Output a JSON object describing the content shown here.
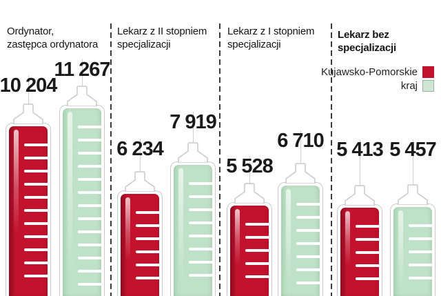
{
  "legend": {
    "items": [
      {
        "label": "Kujawsko-Pomorskie",
        "color": "#c3122d"
      },
      {
        "label": "kraj",
        "color": "#cfe6d4"
      }
    ]
  },
  "categories": [
    {
      "line1": "Ordynator,",
      "line2": "zastępca ordynatora",
      "bold": false
    },
    {
      "line1": "Lekarz z II stopniem",
      "line2": "specjalizacji",
      "bold": false
    },
    {
      "line1": "Lekarz z I stopniem",
      "line2": "specjalizacji",
      "bold": false
    },
    {
      "line1": "Lekarz bez specjalizacji",
      "line2": "",
      "bold": true
    }
  ],
  "chart_data": {
    "type": "bar",
    "categories": [
      "Ordynator, zastępca ordynatora",
      "Lekarz z II stopniem specjalizacji",
      "Lekarz z I stopniem specjalizacji",
      "Lekarz bez specjalizacji"
    ],
    "series": [
      {
        "name": "Kujawsko-Pomorskie",
        "color": "#c3122d",
        "values": [
          10204,
          6234,
          5528,
          5413
        ]
      },
      {
        "name": "kraj",
        "color": "#bfe1c7",
        "values": [
          11267,
          7919,
          6710,
          5457
        ]
      }
    ],
    "value_labels": [
      [
        "10 204",
        "11 267"
      ],
      [
        "6 234",
        "7 919"
      ],
      [
        "5 528",
        "6 710"
      ],
      [
        "5 413",
        "5 457"
      ]
    ],
    "title": "",
    "xlabel": "",
    "ylabel": "",
    "ylim": [
      0,
      11267
    ],
    "grid": false,
    "legend_position": "top-right",
    "bar_style": "syringe",
    "baseline": "bottom-cropped"
  }
}
